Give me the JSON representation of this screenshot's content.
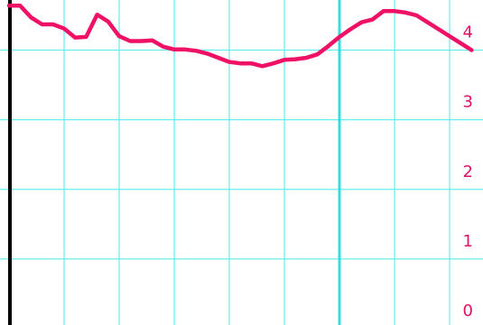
{
  "chart_data": {
    "type": "line",
    "title": "",
    "xlabel": "",
    "ylabel": "",
    "ylim": [
      0,
      4.72
    ],
    "xlim": [
      0,
      41.5
    ],
    "y_axis_position": "right",
    "grid": true,
    "y_ticks": [
      {
        "value": 0,
        "label": "0"
      },
      {
        "value": 1,
        "label": "1"
      },
      {
        "value": 2,
        "label": "2"
      },
      {
        "value": 3,
        "label": "3"
      },
      {
        "value": 4,
        "label": "4"
      }
    ],
    "x_gridlines": [
      5,
      10,
      15,
      20,
      25,
      30,
      35,
      40
    ],
    "highlight_x": 30,
    "series": [
      {
        "x": [
          0,
          1,
          2,
          3,
          4,
          5,
          6,
          7,
          8,
          9,
          10,
          11,
          12,
          13,
          14,
          15,
          16,
          17,
          18,
          19,
          20,
          21,
          22,
          23,
          24,
          25,
          26,
          27,
          28,
          29,
          30,
          31,
          32,
          33,
          34,
          35,
          36,
          37,
          38,
          39,
          40,
          41,
          42
        ],
        "values": [
          4.64,
          4.64,
          4.47,
          4.37,
          4.37,
          4.31,
          4.18,
          4.19,
          4.51,
          4.41,
          4.2,
          4.13,
          4.13,
          4.14,
          4.05,
          4.01,
          4.01,
          3.99,
          3.95,
          3.89,
          3.83,
          3.81,
          3.81,
          3.77,
          3.81,
          3.86,
          3.87,
          3.89,
          3.94,
          4.06,
          4.19,
          4.3,
          4.4,
          4.44,
          4.56,
          4.56,
          4.54,
          4.5,
          4.4,
          4.3,
          4.2,
          4.1,
          4.0
        ]
      }
    ],
    "colors": {
      "line": "#ee1166",
      "grid": "#66eeee",
      "highlight": "#33dddd",
      "axis": "#000000",
      "tick_text": "#dd1166",
      "background": "#ffffff"
    }
  }
}
